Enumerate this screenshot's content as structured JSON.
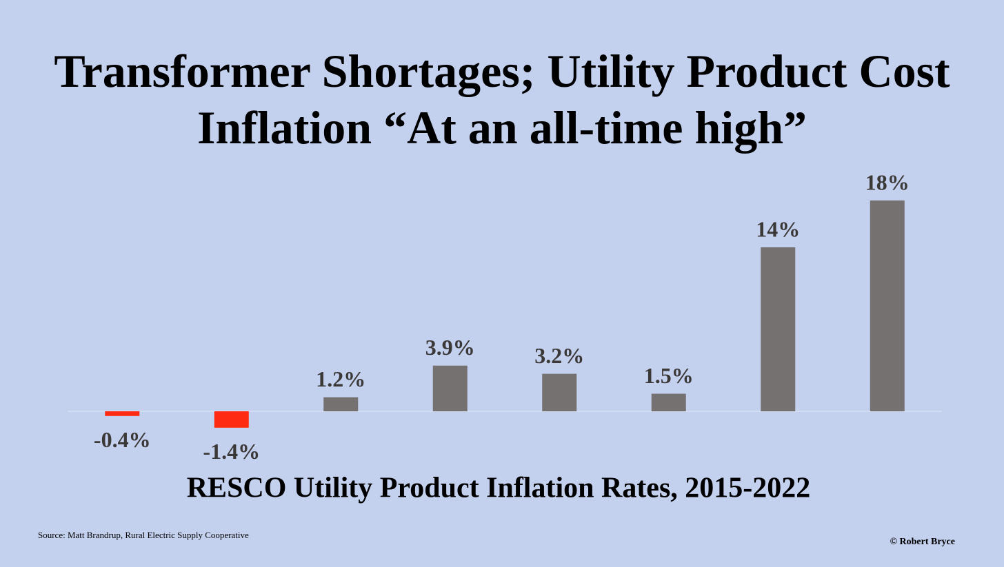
{
  "chart_data": {
    "type": "bar",
    "title": "Transformer Shortages; Utility Product Cost Inflation “At an all-time high”",
    "subtitle": "RESCO Utility Product Inflation Rates, 2015-2022",
    "source": "Source: Matt Brandrup, Rural Electric Supply Cooperative",
    "credit": "© Robert Bryce",
    "values": [
      -0.4,
      -1.4,
      1.2,
      3.9,
      3.2,
      1.5,
      14,
      18
    ],
    "value_labels": [
      "-0.4%",
      "-1.4%",
      "1.2%",
      "3.9%",
      "3.2%",
      "1.5%",
      "14%",
      "18%"
    ],
    "color": "#767171",
    "negative_color": "#ff2a12"
  }
}
